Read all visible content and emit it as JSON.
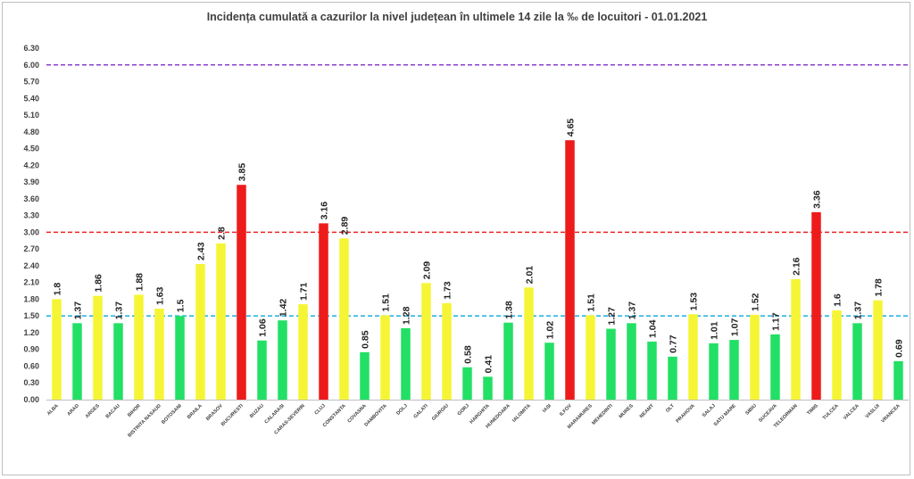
{
  "chart_data": {
    "type": "bar",
    "title": "Incidența cumulată a cazurilor la nivel județean în ultimele 14 zile la ‰ de locuitori - 01.01.2021",
    "xlabel": "",
    "ylabel": "",
    "ylim": [
      0,
      6.3
    ],
    "y_ticks": [
      "0.00",
      "0.30",
      "0.60",
      "0.90",
      "1.20",
      "1.50",
      "1.80",
      "2.10",
      "2.40",
      "2.70",
      "3.00",
      "3.30",
      "3.60",
      "3.90",
      "4.20",
      "4.50",
      "4.80",
      "5.10",
      "5.40",
      "5.70",
      "6.00",
      "6.30"
    ],
    "grid": false,
    "legend": "none",
    "categories": [
      "ALBA",
      "ARAD",
      "ARGES",
      "BACAU",
      "BIHOR",
      "BISTRITA NASAUD",
      "BOTOSANI",
      "BRAILA",
      "BRASOV",
      "BUCURESTI",
      "BUZAU",
      "CALARASI",
      "CARAS-SEVERIN",
      "CLUJ",
      "CONSTANTA",
      "COVASNA",
      "DAMBOVITA",
      "DOLJ",
      "GALATI",
      "GIURGIU",
      "GORJ",
      "HARGHITA",
      "HUNEDOARA",
      "IALOMITA",
      "IASI",
      "ILFOV",
      "MARAMURES",
      "MEHEDINTI",
      "MURES",
      "NEAMT",
      "OLT",
      "PRAHOVA",
      "SALAJ",
      "SATU MARE",
      "SIBIU",
      "SUCEAVA",
      "TELEORMAN",
      "TIMIS",
      "TULCEA",
      "VALCEA",
      "VASLUI",
      "VRANCEA"
    ],
    "values": [
      1.8,
      1.37,
      1.86,
      1.37,
      1.88,
      1.63,
      1.5,
      2.43,
      2.8,
      3.85,
      1.06,
      1.42,
      1.71,
      3.16,
      2.89,
      0.85,
      1.51,
      1.28,
      2.09,
      1.73,
      0.58,
      0.41,
      1.38,
      2.01,
      1.02,
      4.65,
      1.51,
      1.27,
      1.37,
      1.04,
      0.77,
      1.53,
      1.01,
      1.07,
      1.52,
      1.17,
      2.16,
      3.36,
      1.6,
      1.37,
      1.78,
      0.69
    ],
    "value_labels": [
      "1.8",
      "1.37",
      "1.86",
      "1.37",
      "1.88",
      "1.63",
      "1.5",
      "2.43",
      "2.8",
      "3.85",
      "1.06",
      "1.42",
      "1.71",
      "3.16",
      "2.89",
      "0.85",
      "1.51",
      "1.28",
      "2.09",
      "1.73",
      "0.58",
      "0.41",
      "1.38",
      "2.01",
      "1.02",
      "4.65",
      "1.51",
      "1.27",
      "1.37",
      "1.04",
      "0.77",
      "1.53",
      "1.01",
      "1.07",
      "1.52",
      "1.17",
      "2.16",
      "3.36",
      "1.6",
      "1.37",
      "1.78",
      "0.69"
    ],
    "bar_colors": {
      "green": "#22e065",
      "yellow": "#f5f535",
      "red": "#ee1b1b"
    },
    "bar_color_keys": [
      "yellow",
      "green",
      "yellow",
      "green",
      "yellow",
      "yellow",
      "green",
      "yellow",
      "yellow",
      "red",
      "green",
      "green",
      "yellow",
      "red",
      "yellow",
      "green",
      "yellow",
      "green",
      "yellow",
      "yellow",
      "green",
      "green",
      "green",
      "yellow",
      "green",
      "red",
      "yellow",
      "green",
      "green",
      "green",
      "green",
      "yellow",
      "green",
      "green",
      "yellow",
      "green",
      "yellow",
      "red",
      "yellow",
      "green",
      "yellow",
      "green"
    ],
    "reference_lines": [
      {
        "value": 6.0,
        "color": "#8b3fc9",
        "style": "dashed"
      },
      {
        "value": 3.0,
        "color": "#ee2222",
        "style": "dashed"
      },
      {
        "value": 1.5,
        "color": "#2fb5e0",
        "style": "dashed"
      }
    ]
  }
}
